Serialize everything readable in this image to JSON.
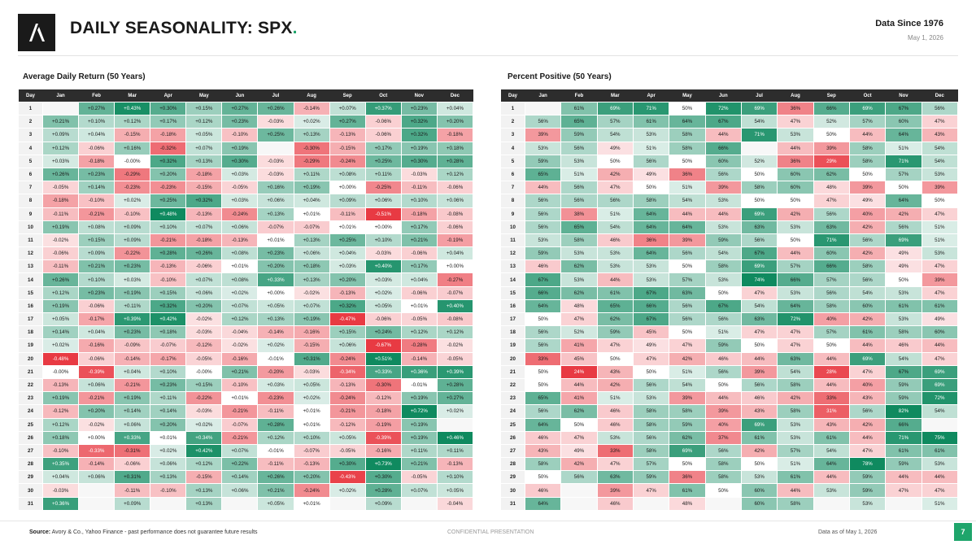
{
  "header": {
    "title": "DAILY SEASONALITY: SPX",
    "title_dot": ".",
    "data_since": "Data Since 1976",
    "date": "May 1, 2026"
  },
  "colors": {
    "accent": "#1ea56b",
    "positive_strong": "#0f8a5f",
    "negative_strong": "#e83a43",
    "header_bg": "#2d2d2d"
  },
  "footer": {
    "source_label": "Source:",
    "source_text": "Avory & Co., Yahoo Finance - past performance does not guarantee future results",
    "confidential": "CONFIDENTIAL PRESENTATION",
    "data_as_of": "Data as of May 1, 2026",
    "page_number": "7"
  },
  "chart_data": [
    {
      "type": "heatmap",
      "title": "Average Daily Return (50 Years)",
      "day_header": "Day",
      "months": [
        "Jan",
        "Feb",
        "Mar",
        "Apr",
        "May",
        "Jun",
        "Jul",
        "Aug",
        "Sep",
        "Oct",
        "Nov",
        "Dec"
      ],
      "rows": [
        [
          "1",
          "",
          "+0.27%",
          "+0.43%",
          "+0.30%",
          "+0.15%",
          "+0.27%",
          "+0.26%",
          "-0.14%",
          "+0.07%",
          "+0.37%",
          "+0.23%",
          "+0.04%"
        ],
        [
          "2",
          "+0.21%",
          "+0.10%",
          "+0.12%",
          "+0.17%",
          "+0.12%",
          "+0.23%",
          "-0.03%",
          "+0.02%",
          "+0.27%",
          "-0.06%",
          "+0.32%",
          "+0.20%"
        ],
        [
          "3",
          "+0.09%",
          "+0.04%",
          "-0.15%",
          "-0.18%",
          "+0.05%",
          "-0.10%",
          "+0.25%",
          "+0.13%",
          "-0.13%",
          "-0.06%",
          "+0.32%",
          "-0.18%"
        ],
        [
          "4",
          "+0.12%",
          "-0.06%",
          "+0.16%",
          "-0.32%",
          "+0.07%",
          "+0.19%",
          "",
          "-0.30%",
          "-0.15%",
          "+0.17%",
          "+0.19%",
          "+0.18%"
        ],
        [
          "5",
          "+0.03%",
          "-0.18%",
          "-0.00%",
          "+0.32%",
          "+0.13%",
          "+0.30%",
          "-0.03%",
          "-0.29%",
          "-0.24%",
          "+0.25%",
          "+0.30%",
          "+0.28%"
        ],
        [
          "6",
          "+0.26%",
          "+0.23%",
          "-0.29%",
          "+0.20%",
          "-0.18%",
          "+0.03%",
          "-0.03%",
          "+0.11%",
          "+0.08%",
          "+0.11%",
          "-0.03%",
          "+0.12%"
        ],
        [
          "7",
          "-0.05%",
          "+0.14%",
          "-0.23%",
          "-0.23%",
          "-0.15%",
          "-0.05%",
          "+0.16%",
          "+0.19%",
          "+0.00%",
          "-0.25%",
          "-0.11%",
          "-0.06%"
        ],
        [
          "8",
          "-0.18%",
          "-0.10%",
          "+0.02%",
          "+0.25%",
          "+0.32%",
          "+0.03%",
          "+0.06%",
          "+0.04%",
          "+0.09%",
          "+0.06%",
          "+0.10%",
          "+0.06%"
        ],
        [
          "9",
          "-0.11%",
          "-0.21%",
          "-0.10%",
          "+0.48%",
          "-0.13%",
          "-0.24%",
          "+0.13%",
          "+0.01%",
          "-0.11%",
          "-0.51%",
          "-0.18%",
          "-0.08%"
        ],
        [
          "10",
          "+0.19%",
          "+0.08%",
          "+0.09%",
          "+0.10%",
          "+0.07%",
          "+0.06%",
          "-0.07%",
          "-0.07%",
          "+0.01%",
          "+0.00%",
          "+0.17%",
          "-0.06%"
        ],
        [
          "11",
          "-0.02%",
          "+0.15%",
          "+0.09%",
          "-0.21%",
          "-0.18%",
          "-0.13%",
          "+0.01%",
          "+0.13%",
          "+0.25%",
          "+0.10%",
          "+0.21%",
          "-0.19%"
        ],
        [
          "12",
          "-0.06%",
          "+0.09%",
          "-0.22%",
          "+0.28%",
          "+0.26%",
          "+0.08%",
          "+0.23%",
          "+0.06%",
          "+0.04%",
          "-0.03%",
          "-0.06%",
          "+0.04%"
        ],
        [
          "13",
          "-0.11%",
          "+0.21%",
          "+0.23%",
          "-0.13%",
          "-0.06%",
          "+0.01%",
          "+0.20%",
          "+0.18%",
          "+0.03%",
          "+0.40%",
          "+0.17%",
          "+0.00%"
        ],
        [
          "14",
          "+0.26%",
          "+0.10%",
          "+0.03%",
          "-0.10%",
          "+0.07%",
          "+0.08%",
          "+0.33%",
          "+0.13%",
          "+0.20%",
          "+0.03%",
          "+0.04%",
          "-0.27%"
        ],
        [
          "15",
          "+0.12%",
          "+0.23%",
          "+0.19%",
          "+0.15%",
          "+0.06%",
          "+0.02%",
          "+0.00%",
          "-0.02%",
          "-0.13%",
          "+0.02%",
          "-0.06%",
          "-0.07%"
        ],
        [
          "16",
          "+0.19%",
          "-0.06%",
          "+0.11%",
          "+0.32%",
          "+0.20%",
          "+0.07%",
          "+0.05%",
          "+0.07%",
          "+0.32%",
          "+0.05%",
          "+0.01%",
          "+0.40%"
        ],
        [
          "17",
          "+0.05%",
          "-0.17%",
          "+0.39%",
          "+0.42%",
          "-0.02%",
          "+0.12%",
          "+0.13%",
          "+0.19%",
          "-0.47%",
          "-0.06%",
          "-0.05%",
          "-0.08%"
        ],
        [
          "18",
          "+0.14%",
          "+0.04%",
          "+0.23%",
          "+0.18%",
          "-0.03%",
          "-0.04%",
          "-0.14%",
          "-0.16%",
          "+0.15%",
          "+0.24%",
          "+0.12%",
          "+0.12%"
        ],
        [
          "19",
          "+0.02%",
          "-0.16%",
          "-0.09%",
          "-0.07%",
          "-0.12%",
          "-0.02%",
          "+0.02%",
          "-0.15%",
          "+0.06%",
          "-0.67%",
          "-0.28%",
          "-0.02%"
        ],
        [
          "20",
          "-0.48%",
          "-0.06%",
          "-0.14%",
          "-0.17%",
          "-0.05%",
          "-0.16%",
          "-0.01%",
          "+0.31%",
          "-0.24%",
          "+0.51%",
          "-0.14%",
          "-0.05%"
        ],
        [
          "21",
          "-0.00%",
          "-0.39%",
          "+0.04%",
          "+0.10%",
          "-0.00%",
          "+0.21%",
          "-0.20%",
          "-0.03%",
          "-0.34%",
          "+0.33%",
          "+0.36%",
          "+0.39%"
        ],
        [
          "22",
          "-0.13%",
          "+0.06%",
          "-0.21%",
          "+0.23%",
          "+0.15%",
          "-0.10%",
          "+0.03%",
          "+0.05%",
          "-0.13%",
          "-0.30%",
          "-0.01%",
          "+0.28%"
        ],
        [
          "23",
          "+0.19%",
          "-0.21%",
          "+0.19%",
          "+0.11%",
          "-0.22%",
          "+0.01%",
          "-0.23%",
          "+0.02%",
          "-0.24%",
          "-0.12%",
          "+0.19%",
          "+0.27%"
        ],
        [
          "24",
          "-0.12%",
          "+0.20%",
          "+0.14%",
          "+0.14%",
          "-0.03%",
          "-0.21%",
          "-0.11%",
          "+0.01%",
          "-0.21%",
          "-0.18%",
          "+0.72%",
          "+0.02%"
        ],
        [
          "25",
          "+0.12%",
          "-0.02%",
          "+0.06%",
          "+0.20%",
          "+0.02%",
          "-0.07%",
          "+0.28%",
          "+0.01%",
          "-0.12%",
          "-0.19%",
          "+0.19%",
          ""
        ],
        [
          "26",
          "+0.18%",
          "+0.00%",
          "+0.33%",
          "+0.01%",
          "+0.34%",
          "-0.21%",
          "+0.12%",
          "+0.10%",
          "+0.05%",
          "-0.39%",
          "+0.19%",
          "+0.46%"
        ],
        [
          "27",
          "-0.10%",
          "-0.33%",
          "-0.31%",
          "+0.02%",
          "+0.42%",
          "+0.07%",
          "-0.01%",
          "-0.07%",
          "-0.05%",
          "-0.16%",
          "+0.11%",
          "+0.11%"
        ],
        [
          "28",
          "+0.35%",
          "-0.14%",
          "-0.06%",
          "+0.06%",
          "+0.12%",
          "+0.22%",
          "-0.11%",
          "-0.13%",
          "+0.30%",
          "+0.73%",
          "+0.21%",
          "-0.13%"
        ],
        [
          "29",
          "+0.04%",
          "+0.06%",
          "+0.31%",
          "+0.13%",
          "-0.15%",
          "+0.14%",
          "+0.26%",
          "+0.20%",
          "-0.43%",
          "+0.30%",
          "-0.05%",
          "+0.10%"
        ],
        [
          "30",
          "-0.03%",
          "",
          "-0.11%",
          "-0.10%",
          "+0.13%",
          "+0.06%",
          "+0.21%",
          "-0.24%",
          "+0.02%",
          "+0.28%",
          "+0.07%",
          "+0.05%"
        ],
        [
          "31",
          "+0.36%",
          "",
          "+0.09%",
          "",
          "+0.13%",
          "",
          "+0.05%",
          "+0.01%",
          "",
          "+0.09%",
          "",
          "-0.04%"
        ]
      ]
    },
    {
      "type": "heatmap",
      "title": "Percent Positive (50 Years)",
      "day_header": "Day",
      "months": [
        "Jan",
        "Feb",
        "Mar",
        "Apr",
        "May",
        "Jun",
        "Jul",
        "Aug",
        "Sep",
        "Oct",
        "Nov",
        "Dec"
      ],
      "rows": [
        [
          "1",
          "",
          "61%",
          "69%",
          "71%",
          "50%",
          "72%",
          "69%",
          "36%",
          "66%",
          "69%",
          "67%",
          "56%"
        ],
        [
          "2",
          "56%",
          "65%",
          "57%",
          "61%",
          "64%",
          "67%",
          "54%",
          "47%",
          "52%",
          "57%",
          "60%",
          "47%"
        ],
        [
          "3",
          "39%",
          "59%",
          "54%",
          "53%",
          "58%",
          "44%",
          "71%",
          "53%",
          "50%",
          "44%",
          "64%",
          "43%"
        ],
        [
          "4",
          "53%",
          "56%",
          "49%",
          "51%",
          "58%",
          "66%",
          "",
          "44%",
          "39%",
          "58%",
          "51%",
          "54%"
        ],
        [
          "5",
          "59%",
          "53%",
          "50%",
          "56%",
          "50%",
          "60%",
          "52%",
          "36%",
          "29%",
          "58%",
          "71%",
          "54%"
        ],
        [
          "6",
          "65%",
          "51%",
          "42%",
          "49%",
          "36%",
          "56%",
          "50%",
          "60%",
          "62%",
          "50%",
          "57%",
          "53%"
        ],
        [
          "7",
          "44%",
          "56%",
          "47%",
          "50%",
          "51%",
          "39%",
          "58%",
          "60%",
          "48%",
          "39%",
          "50%",
          "39%"
        ],
        [
          "8",
          "56%",
          "56%",
          "56%",
          "58%",
          "54%",
          "53%",
          "50%",
          "50%",
          "47%",
          "49%",
          "64%",
          "50%"
        ],
        [
          "9",
          "56%",
          "38%",
          "51%",
          "64%",
          "44%",
          "44%",
          "69%",
          "42%",
          "56%",
          "40%",
          "42%",
          "47%"
        ],
        [
          "10",
          "56%",
          "65%",
          "54%",
          "64%",
          "64%",
          "53%",
          "63%",
          "53%",
          "63%",
          "42%",
          "56%",
          "51%"
        ],
        [
          "11",
          "53%",
          "58%",
          "46%",
          "36%",
          "39%",
          "59%",
          "56%",
          "50%",
          "71%",
          "56%",
          "69%",
          "51%"
        ],
        [
          "12",
          "59%",
          "53%",
          "53%",
          "64%",
          "56%",
          "54%",
          "67%",
          "44%",
          "60%",
          "42%",
          "49%",
          "53%"
        ],
        [
          "13",
          "46%",
          "62%",
          "53%",
          "53%",
          "50%",
          "58%",
          "69%",
          "57%",
          "66%",
          "58%",
          "49%",
          "47%"
        ],
        [
          "14",
          "67%",
          "53%",
          "44%",
          "53%",
          "57%",
          "53%",
          "74%",
          "66%",
          "57%",
          "56%",
          "50%",
          "39%"
        ],
        [
          "15",
          "66%",
          "62%",
          "61%",
          "67%",
          "63%",
          "50%",
          "47%",
          "53%",
          "56%",
          "54%",
          "53%",
          "47%"
        ],
        [
          "16",
          "64%",
          "48%",
          "65%",
          "66%",
          "56%",
          "67%",
          "54%",
          "64%",
          "58%",
          "60%",
          "61%",
          "61%"
        ],
        [
          "17",
          "50%",
          "47%",
          "62%",
          "67%",
          "56%",
          "56%",
          "63%",
          "72%",
          "40%",
          "42%",
          "53%",
          "49%"
        ],
        [
          "18",
          "56%",
          "52%",
          "59%",
          "45%",
          "50%",
          "51%",
          "47%",
          "47%",
          "57%",
          "61%",
          "58%",
          "60%"
        ],
        [
          "19",
          "56%",
          "41%",
          "47%",
          "49%",
          "47%",
          "59%",
          "50%",
          "47%",
          "50%",
          "44%",
          "46%",
          "44%"
        ],
        [
          "20",
          "33%",
          "45%",
          "50%",
          "47%",
          "42%",
          "46%",
          "44%",
          "63%",
          "44%",
          "69%",
          "54%",
          "47%"
        ],
        [
          "21",
          "50%",
          "24%",
          "43%",
          "50%",
          "51%",
          "56%",
          "39%",
          "54%",
          "28%",
          "47%",
          "67%",
          "69%"
        ],
        [
          "22",
          "50%",
          "44%",
          "42%",
          "56%",
          "54%",
          "50%",
          "56%",
          "58%",
          "44%",
          "40%",
          "59%",
          "69%"
        ],
        [
          "23",
          "65%",
          "41%",
          "51%",
          "53%",
          "39%",
          "44%",
          "46%",
          "42%",
          "33%",
          "43%",
          "59%",
          "72%"
        ],
        [
          "24",
          "56%",
          "62%",
          "46%",
          "58%",
          "58%",
          "39%",
          "43%",
          "58%",
          "31%",
          "56%",
          "82%",
          "54%"
        ],
        [
          "25",
          "64%",
          "50%",
          "46%",
          "58%",
          "59%",
          "40%",
          "69%",
          "53%",
          "43%",
          "42%",
          "66%",
          ""
        ],
        [
          "26",
          "46%",
          "47%",
          "53%",
          "56%",
          "62%",
          "37%",
          "61%",
          "53%",
          "61%",
          "44%",
          "71%",
          "75%"
        ],
        [
          "27",
          "43%",
          "49%",
          "33%",
          "58%",
          "69%",
          "56%",
          "42%",
          "57%",
          "54%",
          "47%",
          "61%",
          "61%"
        ],
        [
          "28",
          "58%",
          "42%",
          "47%",
          "57%",
          "50%",
          "58%",
          "50%",
          "51%",
          "64%",
          "78%",
          "59%",
          "53%"
        ],
        [
          "29",
          "50%",
          "56%",
          "63%",
          "59%",
          "36%",
          "58%",
          "53%",
          "61%",
          "44%",
          "59%",
          "44%",
          "44%"
        ],
        [
          "30",
          "46%",
          "",
          "39%",
          "47%",
          "61%",
          "50%",
          "60%",
          "44%",
          "53%",
          "59%",
          "47%",
          "47%"
        ],
        [
          "31",
          "64%",
          "",
          "46%",
          "",
          "48%",
          "",
          "60%",
          "58%",
          "",
          "53%",
          "",
          "51%"
        ]
      ]
    }
  ]
}
